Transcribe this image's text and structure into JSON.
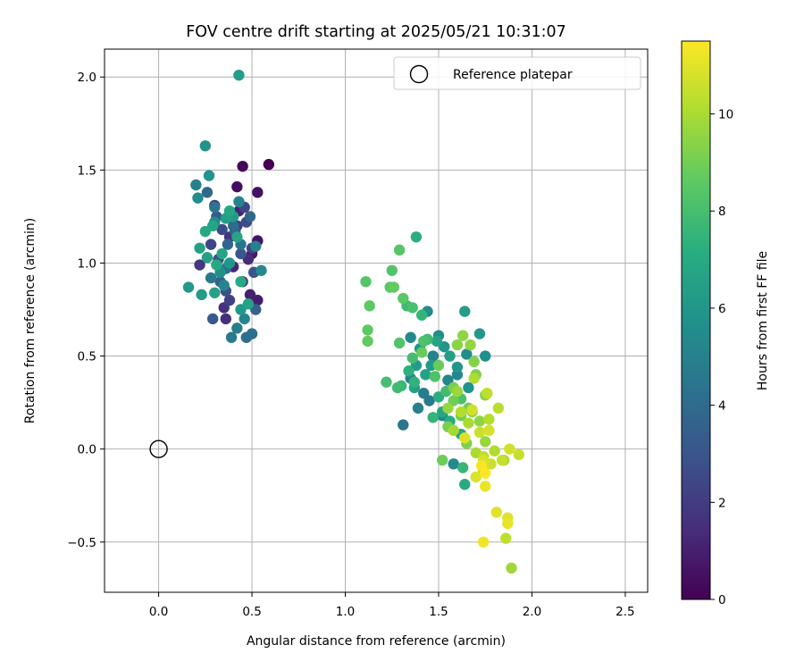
{
  "chart_data": {
    "type": "scatter",
    "title": "FOV centre drift starting at 2025/05/21 10:31:07",
    "xlabel": "Angular distance from reference (arcmin)",
    "ylabel": "Rotation from reference (arcmin)",
    "xlim": [
      -0.29,
      2.62
    ],
    "ylim": [
      -0.77,
      2.15
    ],
    "xticks": [
      0.0,
      0.5,
      1.0,
      1.5,
      2.0,
      2.5
    ],
    "xtick_labels": [
      "0.0",
      "0.5",
      "1.0",
      "1.5",
      "2.0",
      "2.5"
    ],
    "yticks": [
      -0.5,
      0.0,
      0.5,
      1.0,
      1.5,
      2.0
    ],
    "ytick_labels": [
      "−0.5",
      "0.0",
      "0.5",
      "1.0",
      "1.5",
      "2.0"
    ],
    "grid": true,
    "legend": {
      "placement": "upper right",
      "entries": [
        "Reference platepar"
      ]
    },
    "reference_point": {
      "name": "Reference platepar",
      "x": 0.0,
      "y": 0.0,
      "marker": "open-circle"
    },
    "colorbar": {
      "label": "Hours from first FF file",
      "colormap": "viridis",
      "min": 0,
      "max": 11.5,
      "ticks": [
        0,
        2,
        4,
        6,
        8,
        10
      ],
      "tick_labels": [
        "0",
        "2",
        "4",
        "6",
        "8",
        "10"
      ]
    },
    "points": [
      {
        "x": 0.59,
        "y": 1.53,
        "c": 0.0
      },
      {
        "x": 0.45,
        "y": 1.52,
        "c": 0.2
      },
      {
        "x": 0.42,
        "y": 1.41,
        "c": 0.4
      },
      {
        "x": 0.53,
        "y": 1.38,
        "c": 0.5
      },
      {
        "x": 0.53,
        "y": 1.12,
        "c": 0.6
      },
      {
        "x": 0.5,
        "y": 1.05,
        "c": 0.8
      },
      {
        "x": 0.53,
        "y": 0.8,
        "c": 0.9
      },
      {
        "x": 0.49,
        "y": 0.83,
        "c": 1.0
      },
      {
        "x": 0.43,
        "y": 1.28,
        "c": 1.1
      },
      {
        "x": 0.4,
        "y": 0.98,
        "c": 1.2
      },
      {
        "x": 0.48,
        "y": 1.02,
        "c": 1.4
      },
      {
        "x": 0.36,
        "y": 0.7,
        "c": 1.5
      },
      {
        "x": 0.35,
        "y": 0.76,
        "c": 1.6
      },
      {
        "x": 0.38,
        "y": 1.14,
        "c": 1.7
      },
      {
        "x": 0.22,
        "y": 0.99,
        "c": 1.8
      },
      {
        "x": 0.45,
        "y": 0.9,
        "c": 1.9
      },
      {
        "x": 0.3,
        "y": 1.31,
        "c": 2.0
      },
      {
        "x": 0.42,
        "y": 1.2,
        "c": 2.1
      },
      {
        "x": 0.38,
        "y": 0.8,
        "c": 2.2
      },
      {
        "x": 0.5,
        "y": 1.08,
        "c": 2.3
      },
      {
        "x": 0.28,
        "y": 1.1,
        "c": 2.4
      },
      {
        "x": 0.46,
        "y": 1.3,
        "c": 2.5
      },
      {
        "x": 0.34,
        "y": 1.18,
        "c": 2.6
      },
      {
        "x": 0.47,
        "y": 1.22,
        "c": 2.7
      },
      {
        "x": 0.36,
        "y": 0.85,
        "c": 2.8
      },
      {
        "x": 0.32,
        "y": 1.02,
        "c": 2.9
      },
      {
        "x": 0.51,
        "y": 0.95,
        "c": 3.0
      },
      {
        "x": 0.44,
        "y": 1.05,
        "c": 3.1
      },
      {
        "x": 0.29,
        "y": 0.7,
        "c": 3.2
      },
      {
        "x": 0.31,
        "y": 1.25,
        "c": 3.3
      },
      {
        "x": 0.41,
        "y": 1.17,
        "c": 3.4
      },
      {
        "x": 0.52,
        "y": 0.75,
        "c": 3.5
      },
      {
        "x": 0.33,
        "y": 0.9,
        "c": 3.6
      },
      {
        "x": 0.37,
        "y": 1.1,
        "c": 3.7
      },
      {
        "x": 0.49,
        "y": 1.25,
        "c": 3.8
      },
      {
        "x": 0.26,
        "y": 1.38,
        "c": 3.9
      },
      {
        "x": 0.4,
        "y": 1.2,
        "c": 4.0
      },
      {
        "x": 0.47,
        "y": 0.6,
        "c": 4.1
      },
      {
        "x": 0.5,
        "y": 0.62,
        "c": 4.2
      },
      {
        "x": 0.36,
        "y": 0.97,
        "c": 4.3
      },
      {
        "x": 0.44,
        "y": 1.1,
        "c": 4.4
      },
      {
        "x": 0.3,
        "y": 1.3,
        "c": 4.5
      },
      {
        "x": 0.28,
        "y": 0.92,
        "c": 4.6
      },
      {
        "x": 0.39,
        "y": 0.6,
        "c": 4.7
      },
      {
        "x": 0.42,
        "y": 0.65,
        "c": 4.8
      },
      {
        "x": 0.52,
        "y": 1.09,
        "c": 4.9
      },
      {
        "x": 0.2,
        "y": 1.42,
        "c": 5.0
      },
      {
        "x": 0.43,
        "y": 1.33,
        "c": 5.1
      },
      {
        "x": 0.35,
        "y": 0.88,
        "c": 5.2
      },
      {
        "x": 0.46,
        "y": 0.7,
        "c": 5.3
      },
      {
        "x": 0.55,
        "y": 0.96,
        "c": 5.4
      },
      {
        "x": 0.21,
        "y": 1.35,
        "c": 5.5
      },
      {
        "x": 0.3,
        "y": 1.22,
        "c": 5.6
      },
      {
        "x": 0.33,
        "y": 0.95,
        "c": 5.7
      },
      {
        "x": 0.25,
        "y": 1.63,
        "c": 5.8
      },
      {
        "x": 0.27,
        "y": 1.47,
        "c": 5.9
      },
      {
        "x": 0.38,
        "y": 1.0,
        "c": 6.0
      },
      {
        "x": 0.44,
        "y": 0.75,
        "c": 6.1
      },
      {
        "x": 0.16,
        "y": 0.87,
        "c": 6.1
      },
      {
        "x": 0.4,
        "y": 1.25,
        "c": 6.2
      },
      {
        "x": 0.23,
        "y": 0.83,
        "c": 6.3
      },
      {
        "x": 0.43,
        "y": 2.01,
        "c": 6.4
      },
      {
        "x": 0.36,
        "y": 1.24,
        "c": 6.4
      },
      {
        "x": 0.3,
        "y": 0.84,
        "c": 6.5
      },
      {
        "x": 0.26,
        "y": 1.03,
        "c": 6.5
      },
      {
        "x": 0.22,
        "y": 1.08,
        "c": 6.6
      },
      {
        "x": 0.48,
        "y": 0.78,
        "c": 6.6
      },
      {
        "x": 0.34,
        "y": 1.05,
        "c": 6.7
      },
      {
        "x": 0.42,
        "y": 1.14,
        "c": 6.7
      },
      {
        "x": 0.29,
        "y": 1.2,
        "c": 6.8
      },
      {
        "x": 0.38,
        "y": 1.28,
        "c": 6.8
      },
      {
        "x": 0.25,
        "y": 1.17,
        "c": 6.9
      },
      {
        "x": 0.31,
        "y": 0.99,
        "c": 6.9
      },
      {
        "x": 0.44,
        "y": 0.9,
        "c": 7.0
      },
      {
        "x": 1.31,
        "y": 0.13,
        "c": 4.5
      },
      {
        "x": 1.45,
        "y": 0.26,
        "c": 4.7
      },
      {
        "x": 1.42,
        "y": 0.3,
        "c": 4.8
      },
      {
        "x": 1.35,
        "y": 0.38,
        "c": 4.9
      },
      {
        "x": 1.39,
        "y": 0.22,
        "c": 5.0
      },
      {
        "x": 1.47,
        "y": 0.5,
        "c": 5.1
      },
      {
        "x": 1.55,
        "y": 0.37,
        "c": 5.2
      },
      {
        "x": 1.6,
        "y": 0.4,
        "c": 5.3
      },
      {
        "x": 1.52,
        "y": 0.18,
        "c": 5.3
      },
      {
        "x": 1.58,
        "y": -0.08,
        "c": 5.4
      },
      {
        "x": 1.35,
        "y": 0.6,
        "c": 5.4
      },
      {
        "x": 1.44,
        "y": 0.74,
        "c": 5.5
      },
      {
        "x": 1.5,
        "y": 0.61,
        "c": 5.6
      },
      {
        "x": 1.65,
        "y": 0.51,
        "c": 5.6
      },
      {
        "x": 1.75,
        "y": 0.5,
        "c": 5.7
      },
      {
        "x": 1.66,
        "y": 0.33,
        "c": 5.8
      },
      {
        "x": 1.53,
        "y": 0.55,
        "c": 5.9
      },
      {
        "x": 1.6,
        "y": 0.44,
        "c": 6.0
      },
      {
        "x": 1.4,
        "y": 0.54,
        "c": 6.0
      },
      {
        "x": 1.72,
        "y": 0.62,
        "c": 6.1
      },
      {
        "x": 1.46,
        "y": 0.45,
        "c": 6.2
      },
      {
        "x": 1.64,
        "y": 0.74,
        "c": 6.3
      },
      {
        "x": 1.38,
        "y": 0.45,
        "c": 6.3
      },
      {
        "x": 1.56,
        "y": 0.5,
        "c": 6.4
      },
      {
        "x": 1.37,
        "y": 0.33,
        "c": 6.5
      },
      {
        "x": 1.43,
        "y": 0.4,
        "c": 6.6
      },
      {
        "x": 1.49,
        "y": 0.58,
        "c": 6.7
      },
      {
        "x": 1.52,
        "y": 0.2,
        "c": 6.8
      },
      {
        "x": 1.62,
        "y": 0.08,
        "c": 6.9
      },
      {
        "x": 1.64,
        "y": -0.19,
        "c": 7.0
      },
      {
        "x": 1.56,
        "y": 0.15,
        "c": 7.1
      },
      {
        "x": 1.5,
        "y": 0.28,
        "c": 7.2
      },
      {
        "x": 1.38,
        "y": 1.14,
        "c": 7.2
      },
      {
        "x": 1.34,
        "y": 0.42,
        "c": 7.3
      },
      {
        "x": 1.37,
        "y": 0.36,
        "c": 7.4
      },
      {
        "x": 1.41,
        "y": 0.72,
        "c": 7.5
      },
      {
        "x": 1.47,
        "y": 0.17,
        "c": 7.5
      },
      {
        "x": 1.63,
        "y": -0.1,
        "c": 7.6
      },
      {
        "x": 1.3,
        "y": 0.34,
        "c": 7.7
      },
      {
        "x": 1.28,
        "y": 0.33,
        "c": 7.8
      },
      {
        "x": 1.33,
        "y": 0.77,
        "c": 7.8
      },
      {
        "x": 1.44,
        "y": 0.59,
        "c": 7.9
      },
      {
        "x": 1.54,
        "y": 0.31,
        "c": 7.9
      },
      {
        "x": 1.36,
        "y": 0.49,
        "c": 8.0
      },
      {
        "x": 1.22,
        "y": 0.36,
        "c": 8.0
      },
      {
        "x": 1.36,
        "y": 0.76,
        "c": 8.1
      },
      {
        "x": 1.62,
        "y": 0.27,
        "c": 8.1
      },
      {
        "x": 1.48,
        "y": 0.39,
        "c": 8.2
      },
      {
        "x": 1.42,
        "y": 0.58,
        "c": 8.2
      },
      {
        "x": 1.29,
        "y": 0.57,
        "c": 8.3
      },
      {
        "x": 1.25,
        "y": 0.96,
        "c": 8.3
      },
      {
        "x": 1.29,
        "y": 1.07,
        "c": 8.4
      },
      {
        "x": 1.11,
        "y": 0.9,
        "c": 8.4
      },
      {
        "x": 1.24,
        "y": 0.87,
        "c": 8.5
      },
      {
        "x": 1.31,
        "y": 0.81,
        "c": 8.5
      },
      {
        "x": 1.13,
        "y": 0.77,
        "c": 8.6
      },
      {
        "x": 1.12,
        "y": 0.64,
        "c": 8.6
      },
      {
        "x": 1.12,
        "y": 0.58,
        "c": 8.7
      },
      {
        "x": 1.26,
        "y": 0.87,
        "c": 8.7
      },
      {
        "x": 1.5,
        "y": 0.45,
        "c": 8.8
      },
      {
        "x": 1.41,
        "y": 0.52,
        "c": 8.8
      },
      {
        "x": 1.52,
        "y": -0.06,
        "c": 8.9
      },
      {
        "x": 1.58,
        "y": 0.26,
        "c": 8.9
      },
      {
        "x": 1.62,
        "y": 0.18,
        "c": 9.0
      },
      {
        "x": 1.66,
        "y": 0.22,
        "c": 9.0
      },
      {
        "x": 1.55,
        "y": 0.12,
        "c": 9.1
      },
      {
        "x": 1.58,
        "y": 0.33,
        "c": 9.1
      },
      {
        "x": 1.65,
        "y": 0.03,
        "c": 9.2
      },
      {
        "x": 1.7,
        "y": 0.4,
        "c": 9.2
      },
      {
        "x": 1.69,
        "y": 0.47,
        "c": 9.3
      },
      {
        "x": 1.75,
        "y": 0.29,
        "c": 9.3
      },
      {
        "x": 1.6,
        "y": 0.56,
        "c": 9.4
      },
      {
        "x": 1.68,
        "y": 0.2,
        "c": 9.4
      },
      {
        "x": 1.72,
        "y": 0.15,
        "c": 9.5
      },
      {
        "x": 1.63,
        "y": 0.61,
        "c": 9.5
      },
      {
        "x": 1.55,
        "y": 0.22,
        "c": 9.6
      },
      {
        "x": 1.67,
        "y": 0.56,
        "c": 9.6
      },
      {
        "x": 1.6,
        "y": 0.31,
        "c": 9.7
      },
      {
        "x": 1.75,
        "y": 0.04,
        "c": 9.7
      },
      {
        "x": 1.85,
        "y": -0.06,
        "c": 9.8
      },
      {
        "x": 1.89,
        "y": -0.64,
        "c": 9.8
      },
      {
        "x": 1.74,
        "y": -0.11,
        "c": 9.9
      },
      {
        "x": 1.58,
        "y": 0.1,
        "c": 9.9
      },
      {
        "x": 1.7,
        "y": -0.02,
        "c": 10.0
      },
      {
        "x": 1.66,
        "y": 0.14,
        "c": 10.0
      },
      {
        "x": 1.8,
        "y": -0.01,
        "c": 10.1
      },
      {
        "x": 1.69,
        "y": 0.38,
        "c": 10.1
      },
      {
        "x": 1.77,
        "y": 0.16,
        "c": 10.2
      },
      {
        "x": 1.62,
        "y": 0.2,
        "c": 10.2
      },
      {
        "x": 1.74,
        "y": -0.04,
        "c": 10.3
      },
      {
        "x": 1.82,
        "y": 0.22,
        "c": 10.3
      },
      {
        "x": 1.76,
        "y": 0.3,
        "c": 10.4
      },
      {
        "x": 1.86,
        "y": -0.48,
        "c": 10.4
      },
      {
        "x": 1.84,
        "y": -0.06,
        "c": 10.5
      },
      {
        "x": 1.93,
        "y": -0.03,
        "c": 10.5
      },
      {
        "x": 1.72,
        "y": 0.09,
        "c": 10.6
      },
      {
        "x": 1.78,
        "y": -0.08,
        "c": 10.6
      },
      {
        "x": 1.88,
        "y": 0.0,
        "c": 10.7
      },
      {
        "x": 1.68,
        "y": 0.21,
        "c": 10.7
      },
      {
        "x": 1.74,
        "y": -0.06,
        "c": 10.8
      },
      {
        "x": 1.77,
        "y": 0.1,
        "c": 10.8
      },
      {
        "x": 1.64,
        "y": 0.06,
        "c": 10.9
      },
      {
        "x": 1.7,
        "y": -0.15,
        "c": 10.9
      },
      {
        "x": 1.81,
        "y": -0.34,
        "c": 11.0
      },
      {
        "x": 1.87,
        "y": -0.37,
        "c": 11.0
      },
      {
        "x": 1.87,
        "y": -0.4,
        "c": 11.1
      },
      {
        "x": 1.75,
        "y": -0.2,
        "c": 11.2
      },
      {
        "x": 1.74,
        "y": -0.5,
        "c": 11.3
      },
      {
        "x": 1.73,
        "y": -0.09,
        "c": 11.4
      },
      {
        "x": 1.75,
        "y": -0.13,
        "c": 11.5
      }
    ]
  }
}
